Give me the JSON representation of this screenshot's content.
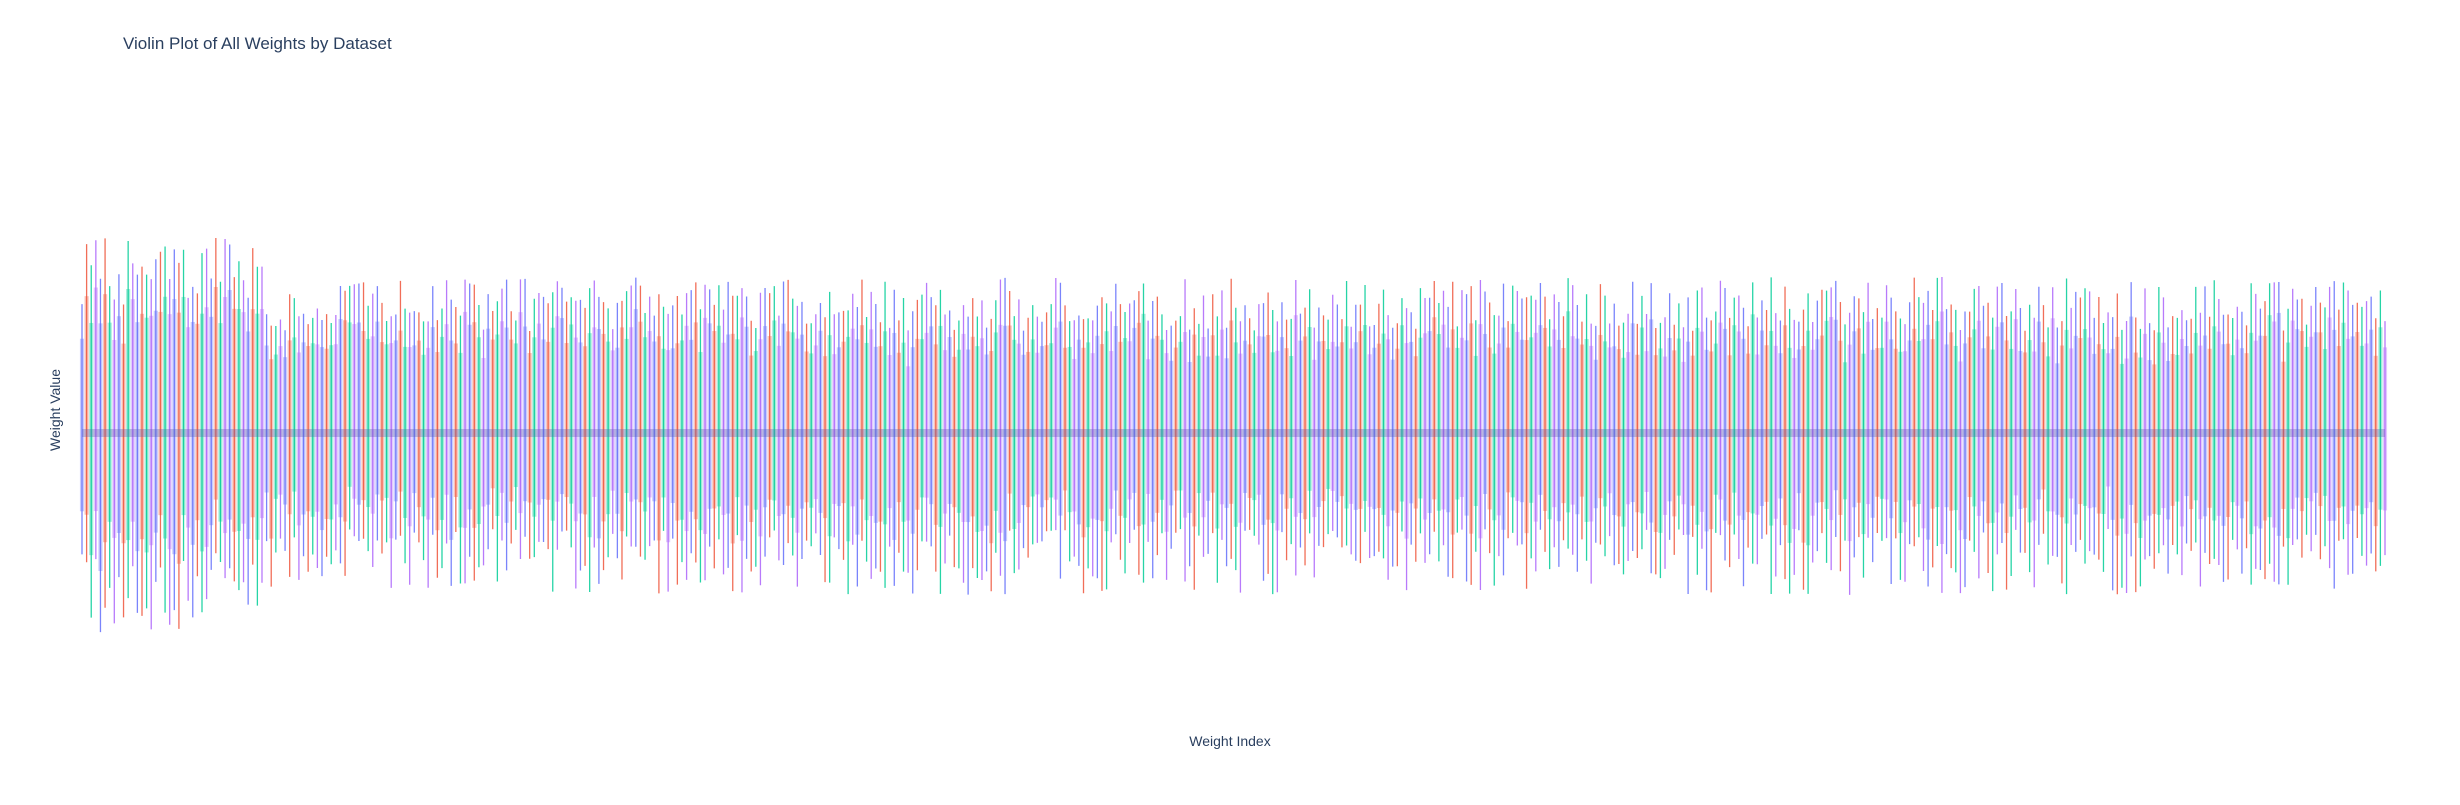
{
  "chart_data": {
    "type": "violin",
    "title": "Violin Plot of All Weights by Dataset",
    "xlabel": "Weight Index",
    "ylabel": "Weight Value",
    "series_colors": [
      "#636efa",
      "#ef553b",
      "#00cc96",
      "#ab63fa"
    ],
    "n_violins": 500,
    "grid": false,
    "legend": "none",
    "ylim": [
      -1,
      1
    ]
  }
}
